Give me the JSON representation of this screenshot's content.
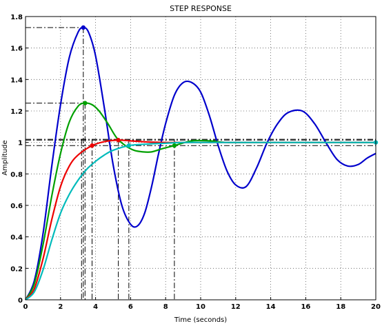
{
  "chart_data": {
    "type": "line",
    "title": "STEP RESPONSE",
    "xlabel": "Time (seconds)",
    "ylabel": "Amplitude",
    "xlim": [
      0,
      20
    ],
    "ylim": [
      0,
      1.8
    ],
    "xticks": [
      0,
      2,
      4,
      6,
      8,
      10,
      12,
      14,
      16,
      18,
      20
    ],
    "yticks": [
      0,
      0.2,
      0.4,
      0.6,
      0.8,
      1,
      1.2,
      1.4,
      1.6,
      1.8
    ],
    "xtick_labels": [
      "0",
      "2",
      "4",
      "6",
      "8",
      "10",
      "12",
      "14",
      "16",
      "18",
      "20"
    ],
    "ytick_labels": [
      "0",
      "0.2",
      "0.4",
      "0.6",
      "0.8",
      "1",
      "1.2",
      "1.4",
      "1.6",
      "1.8"
    ],
    "grid": true,
    "series": [
      {
        "color": "#0000cc",
        "x": [
          0,
          0.5,
          1,
          1.5,
          2,
          2.5,
          3,
          3.3,
          3.6,
          4,
          4.5,
          5,
          5.5,
          6,
          6.4,
          6.8,
          7.2,
          7.6,
          8,
          8.5,
          9,
          9.5,
          10,
          10.5,
          11,
          11.5,
          12,
          12.6,
          13.2,
          13.8,
          14.4,
          15,
          15.8,
          16.5,
          17.2,
          17.8,
          18.4,
          19,
          19.5,
          20
        ],
        "values": [
          0,
          0.12,
          0.42,
          0.85,
          1.24,
          1.54,
          1.7,
          1.73,
          1.7,
          1.55,
          1.22,
          0.86,
          0.6,
          0.48,
          0.47,
          0.55,
          0.72,
          0.93,
          1.12,
          1.3,
          1.38,
          1.38,
          1.32,
          1.17,
          0.98,
          0.82,
          0.73,
          0.72,
          0.84,
          1.0,
          1.12,
          1.19,
          1.2,
          1.12,
          0.99,
          0.89,
          0.85,
          0.86,
          0.9,
          0.93
        ],
        "markers": [
          {
            "x": 3.3,
            "y": 1.73
          }
        ]
      },
      {
        "color": "#00a000",
        "x": [
          0,
          0.5,
          1,
          1.5,
          2,
          2.5,
          3,
          3.4,
          3.8,
          4.2,
          4.7,
          5.2,
          5.7,
          6.2,
          6.7,
          7.2,
          7.8,
          8.5,
          9.5,
          10.5,
          11.5,
          13,
          15,
          20
        ],
        "values": [
          0,
          0.1,
          0.35,
          0.66,
          0.93,
          1.13,
          1.23,
          1.25,
          1.24,
          1.2,
          1.12,
          1.03,
          0.98,
          0.95,
          0.94,
          0.94,
          0.96,
          0.98,
          1.01,
          1.01,
          1.0,
          1.0,
          1.0,
          1.0
        ],
        "markers": [
          {
            "x": 3.4,
            "y": 1.25
          },
          {
            "x": 8.5,
            "y": 0.98
          }
        ]
      },
      {
        "color": "#ee0000",
        "x": [
          0,
          0.5,
          1,
          1.5,
          2,
          2.5,
          3,
          3.8,
          4.5,
          5.3,
          6,
          7,
          8,
          9,
          10,
          12,
          15,
          20
        ],
        "values": [
          0,
          0.07,
          0.26,
          0.51,
          0.72,
          0.85,
          0.92,
          0.98,
          1.005,
          1.015,
          1.01,
          1.003,
          1.0,
          1.0,
          1.0,
          1.0,
          1.0,
          1.0
        ],
        "markers": [
          {
            "x": 3.8,
            "y": 0.98
          },
          {
            "x": 5.3,
            "y": 1.015
          }
        ]
      },
      {
        "color": "#00bbbb",
        "x": [
          0,
          0.5,
          1,
          1.5,
          2,
          2.5,
          3,
          3.5,
          4,
          4.5,
          5,
          5.9,
          7,
          8,
          9,
          10,
          12,
          14,
          16,
          20
        ],
        "values": [
          0,
          0.05,
          0.19,
          0.38,
          0.55,
          0.67,
          0.76,
          0.83,
          0.88,
          0.92,
          0.95,
          0.98,
          0.99,
          0.995,
          1.0,
          1.0,
          1.0,
          1.0,
          1.0,
          1.0
        ],
        "markers": [
          {
            "x": 5.9,
            "y": 0.98
          },
          {
            "x": 20,
            "y": 1.0
          }
        ]
      }
    ],
    "reference_lines": {
      "horizontal": [
        1.73,
        1.25,
        1.02,
        1.015,
        0.98
      ],
      "vertical": [
        3.2,
        3.3,
        3.4,
        3.8,
        5.3,
        5.9,
        8.5
      ]
    }
  }
}
